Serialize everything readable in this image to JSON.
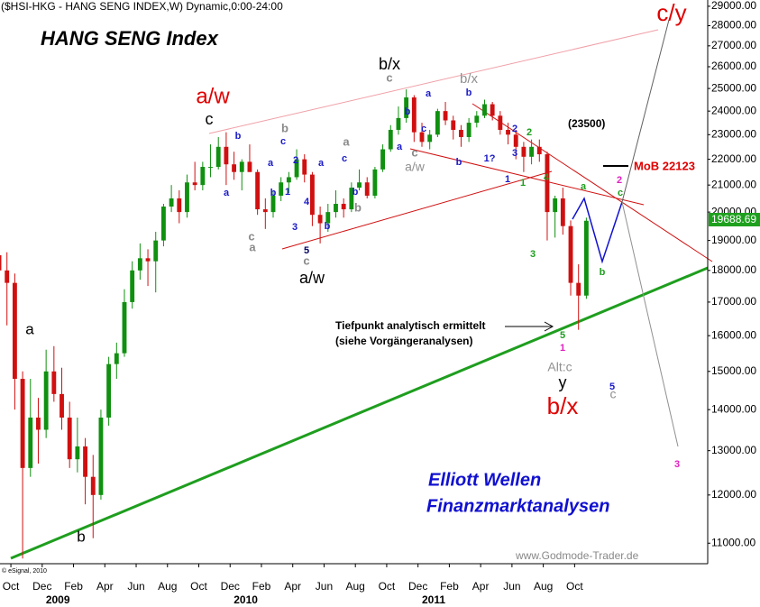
{
  "chart_data": {
    "type": "candlestick",
    "title": "($HSI-HKG - HANG SENG INDEX,W) Dynamic,0:00-24:00",
    "subtitle": "HANG SENG Index",
    "categories": [
      null,
      null,
      "Oct",
      null,
      null,
      null,
      "Dec",
      null,
      null,
      null,
      "Feb",
      null,
      null,
      null,
      "Apr",
      null,
      null,
      null,
      "Jun",
      null,
      null,
      null,
      "Aug",
      null,
      null,
      null,
      "Oct",
      null,
      null,
      null,
      "Dec",
      null,
      null,
      null,
      "Feb",
      null,
      null,
      null,
      "Apr",
      null,
      null,
      null,
      "Jun",
      null,
      null,
      null,
      "Aug",
      null,
      null,
      null,
      "Oct",
      null,
      null,
      null,
      "Dec",
      null,
      null,
      null,
      "Feb",
      null,
      null,
      null,
      "Apr",
      null,
      null,
      null,
      "Jun",
      null,
      null,
      null,
      "Aug",
      null,
      null,
      null,
      "Oct",
      null,
      null,
      null,
      null,
      null,
      null,
      null,
      null,
      null,
      null,
      null,
      null,
      null,
      null,
      null,
      null
    ],
    "years": [
      "2009",
      "2010",
      "2011"
    ],
    "open": [
      18500,
      18000,
      17600,
      14800,
      12600,
      13800,
      13500,
      15000,
      14400,
      13800,
      12800,
      13100,
      12400,
      12000,
      13800,
      15200,
      15500,
      17000,
      18000,
      18400,
      18300,
      19000,
      20200,
      20500,
      20000,
      21100,
      21000,
      21700,
      21700,
      22500,
      21800,
      21500,
      21900,
      21500,
      20100,
      20000,
      20600,
      21100,
      21300,
      22000,
      21400,
      19900,
      19600,
      20000,
      20300,
      20100,
      20900,
      21100,
      20600,
      21600,
      22400,
      23200,
      23700,
      24600,
      23100,
      22700,
      23000,
      24000,
      23600,
      23200,
      22900,
      23500,
      23800,
      24300,
      23800,
      23200,
      23000,
      22500,
      22100,
      22500,
      22200,
      20000,
      20500,
      19500,
      17600,
      17200,
      null,
      null,
      null,
      null,
      null,
      null,
      null,
      null,
      null,
      null,
      null,
      null,
      null,
      null,
      null
    ],
    "high": [
      19000,
      18600,
      17900,
      15000,
      14800,
      14300,
      15600,
      15700,
      15100,
      14200,
      13800,
      13300,
      12900,
      14000,
      15400,
      15800,
      17400,
      18300,
      18900,
      18700,
      19300,
      20300,
      21000,
      20800,
      21400,
      21900,
      21900,
      22600,
      22900,
      23100,
      22300,
      22000,
      22600,
      21600,
      20500,
      20800,
      21300,
      21500,
      22400,
      22200,
      21500,
      20200,
      20300,
      20800,
      20500,
      21100,
      21600,
      21300,
      21700,
      22600,
      23400,
      24200,
      24960,
      24700,
      23500,
      23200,
      24100,
      24400,
      23800,
      23400,
      23700,
      24000,
      24500,
      24400,
      24000,
      23500,
      23200,
      22700,
      22800,
      22800,
      22300,
      20600,
      20900,
      19700,
      18200,
      19800,
      null,
      null,
      null,
      null,
      null,
      null,
      null,
      null,
      null,
      null,
      null,
      null,
      null,
      null,
      null
    ],
    "low": [
      17600,
      16300,
      14000,
      10700,
      12400,
      12700,
      13300,
      14200,
      13500,
      12600,
      12500,
      11800,
      11100,
      11900,
      13600,
      14800,
      15400,
      16800,
      17700,
      17500,
      17300,
      18800,
      20000,
      19600,
      19800,
      20800,
      20800,
      21300,
      21600,
      21000,
      21200,
      20800,
      21500,
      19900,
      19400,
      19800,
      20400,
      20700,
      21200,
      21100,
      19500,
      18900,
      19300,
      19800,
      19800,
      20000,
      20800,
      20500,
      20500,
      21500,
      22300,
      23000,
      23500,
      22700,
      22500,
      22400,
      22900,
      23400,
      22800,
      22500,
      22700,
      23300,
      23700,
      23600,
      23000,
      22600,
      22000,
      21500,
      21800,
      21900,
      19000,
      19100,
      19200,
      17200,
      16170,
      17100,
      null,
      null,
      null,
      null,
      null,
      null,
      null,
      null,
      null,
      null,
      null,
      null,
      null,
      null,
      null
    ],
    "close": [
      18000,
      17600,
      14800,
      12600,
      13800,
      13500,
      15000,
      14400,
      13800,
      12800,
      13100,
      12400,
      12000,
      13800,
      15200,
      15500,
      17000,
      18000,
      18400,
      18300,
      19000,
      20200,
      20500,
      20000,
      21100,
      21000,
      21700,
      21700,
      22500,
      21800,
      21500,
      21900,
      21500,
      20100,
      20000,
      20600,
      21100,
      21300,
      22000,
      21400,
      19900,
      19600,
      20000,
      20300,
      20100,
      20900,
      21100,
      20600,
      21600,
      22400,
      23200,
      23700,
      24600,
      23100,
      22700,
      23000,
      24000,
      23600,
      23200,
      22900,
      23500,
      23800,
      24300,
      23800,
      23200,
      23000,
      22500,
      22100,
      22500,
      22200,
      20000,
      20500,
      19500,
      17600,
      17200,
      19688.69,
      null,
      null,
      null,
      null,
      null,
      null,
      null,
      null,
      null,
      null,
      null,
      null,
      null,
      null,
      null
    ],
    "up_color": "#109010",
    "down_color": "#d01010",
    "log_scale": true,
    "grid": false,
    "ylim": [
      10600,
      29330
    ],
    "yticks": [
      {
        "value": 11000,
        "label": "11000.00"
      },
      {
        "value": 12000,
        "label": "12000.00"
      },
      {
        "value": 13000,
        "label": "13000.00"
      },
      {
        "value": 14000,
        "label": "14000.00"
      },
      {
        "value": 15000,
        "label": "15000.00"
      },
      {
        "value": 16000,
        "label": "16000.00"
      },
      {
        "value": 17000,
        "label": "17000.00"
      },
      {
        "value": 18000,
        "label": "18000.00"
      },
      {
        "value": 19000,
        "label": "19000.00"
      },
      {
        "value": 20000,
        "label": "20000.00"
      },
      {
        "value": 21000,
        "label": "21000.00"
      },
      {
        "value": 22000,
        "label": "22000.00"
      },
      {
        "value": 23000,
        "label": "23000.00"
      },
      {
        "value": 24000,
        "label": "24000.00"
      },
      {
        "value": 25000,
        "label": "25000.00"
      },
      {
        "value": 26000,
        "label": "26000.00"
      },
      {
        "value": 27000,
        "label": "27000.00"
      },
      {
        "value": 28000,
        "label": "28000.00"
      },
      {
        "value": 29000,
        "label": "29000.00"
      }
    ],
    "annotations": [
      "c/y",
      "a/w",
      "b/x",
      "b/x",
      "b/x",
      "c",
      "a",
      "b",
      "a/w",
      "y",
      "Alt:c",
      "c",
      "b",
      "a",
      "a",
      "b",
      "c",
      "2",
      "1",
      "4",
      "3",
      "b",
      "a",
      "c",
      "b",
      "a",
      "b",
      "c",
      "a",
      "b",
      "b",
      "1?",
      "2",
      "3",
      "1",
      "5",
      "b",
      "a",
      "b",
      "c",
      "a",
      "c",
      "a/w",
      "c",
      "c",
      "5",
      "2",
      "1",
      "4",
      "3",
      "5",
      "a",
      "b",
      "c",
      "1",
      "2",
      "3",
      "Tiefpunkt analytisch ermittelt",
      "(siehe Vorgängeranalysen)",
      "(23500)",
      "MoB 22123",
      "Elliott Wellen",
      "Finanzmarktanalysen",
      "www.Godmode-Trader.de",
      "© eSignal, 2010"
    ]
  }
}
